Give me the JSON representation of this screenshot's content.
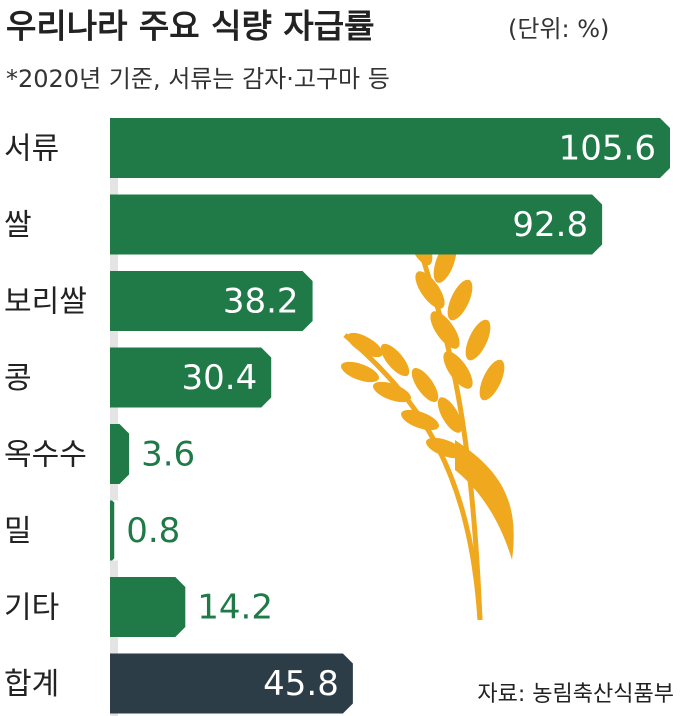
{
  "chart_data": {
    "type": "bar",
    "title": "우리나라 주요 식량 자급률",
    "unit": "(단위: %)",
    "note": "*2020년 기준, 서류는 감자·고구마 등",
    "source": "자료: 농림축산식품부",
    "categories": [
      "서류",
      "쌀",
      "보리쌀",
      "콩",
      "옥수수",
      "밀",
      "기타",
      "합계"
    ],
    "values": [
      105.6,
      92.8,
      38.2,
      30.4,
      3.6,
      0.8,
      14.2,
      45.8
    ],
    "colors": [
      "#1f7a48",
      "#1f7a48",
      "#1f7a48",
      "#1f7a48",
      "#1f7a48",
      "#1f7a48",
      "#1f7a48",
      "#2c3d47"
    ]
  }
}
